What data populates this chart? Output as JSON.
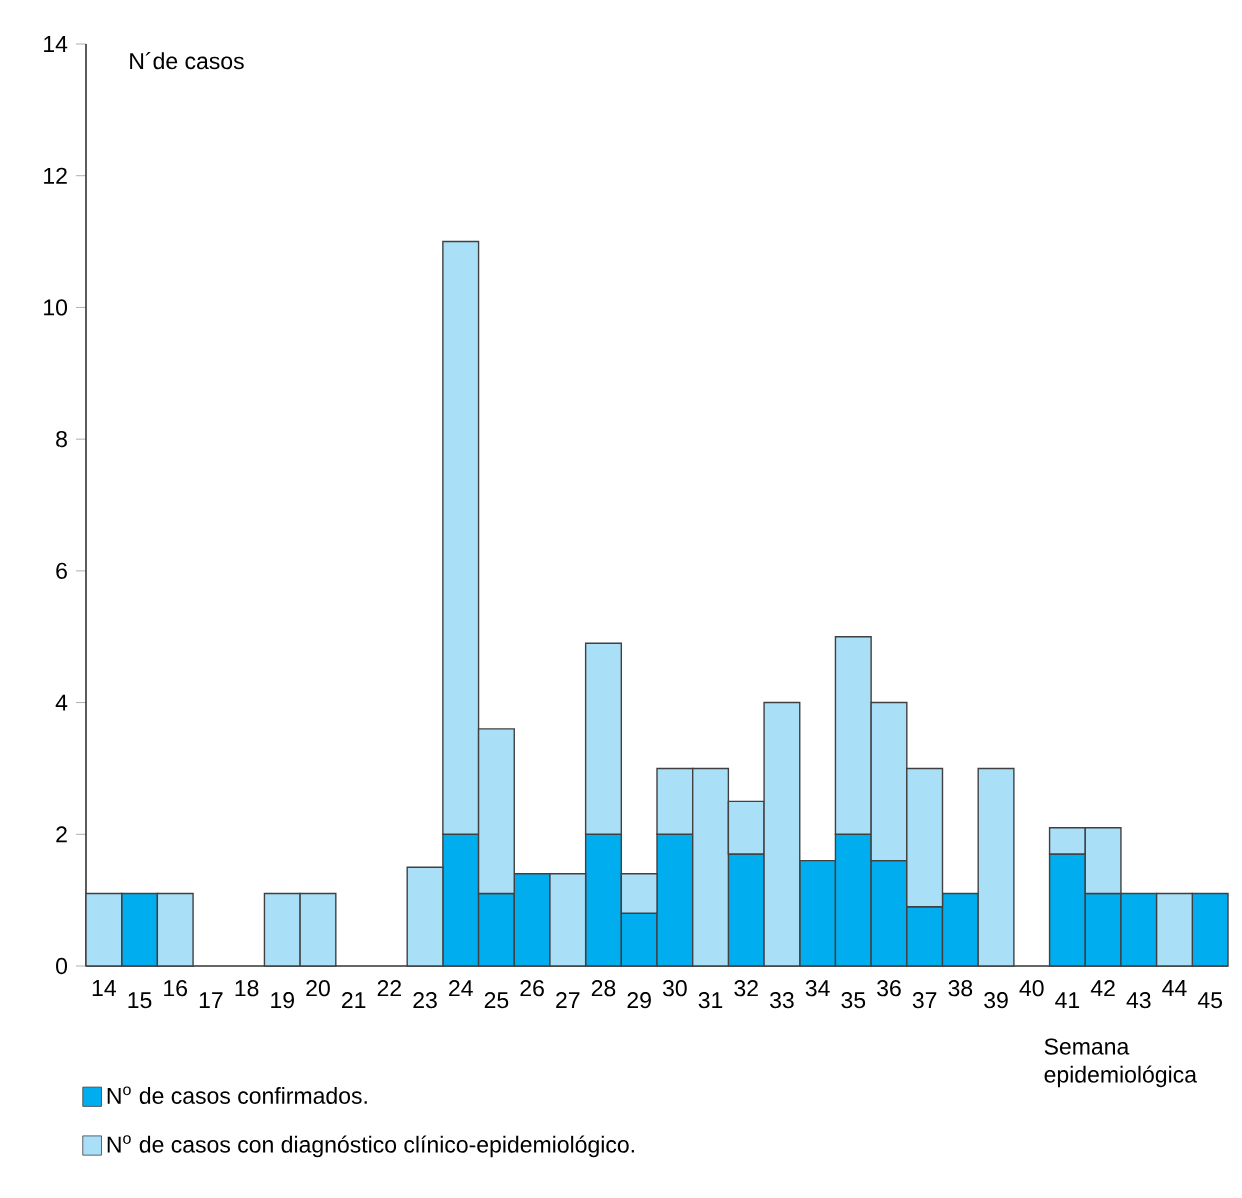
{
  "chart_data": {
    "type": "bar",
    "stacked": true,
    "ylabel": "N´de casos",
    "xlabel": "Semana epidemiológica",
    "categories": [
      "14",
      "15",
      "16",
      "17",
      "18",
      "19",
      "20",
      "21",
      "22",
      "23",
      "24",
      "25",
      "26",
      "27",
      "28",
      "29",
      "30",
      "31",
      "32",
      "33",
      "34",
      "35",
      "36",
      "37",
      "38",
      "39",
      "40",
      "41",
      "42",
      "43",
      "44",
      "45"
    ],
    "series": [
      {
        "name": "N$^{o}$ de casos confirmados.",
        "color": "#00aeef",
        "values": [
          null,
          1.1,
          null,
          null,
          null,
          null,
          null,
          null,
          null,
          null,
          2,
          1.1,
          1.4,
          null,
          2,
          0.8,
          2,
          null,
          1.7,
          null,
          1.6,
          2,
          1.6,
          0.9,
          1.1,
          null,
          null,
          1.7,
          1.1,
          1.1,
          null,
          1.1
        ]
      },
      {
        "name": "N$^{o}$ de casos con diagnóstico clínico-epidemiológico.",
        "color": "#aadff8",
        "values": [
          1.1,
          null,
          1.1,
          null,
          null,
          1.1,
          1.1,
          null,
          null,
          1.5,
          9,
          2.5,
          null,
          1.4,
          2.9,
          0.6,
          1,
          3,
          0.8,
          4,
          null,
          3,
          2.4,
          2.1,
          null,
          3,
          null,
          0.4,
          1,
          null,
          1.1,
          null
        ]
      }
    ],
    "ylim": [
      0,
      14
    ],
    "yticks": [
      0,
      2,
      4,
      6,
      8,
      10,
      12,
      14
    ],
    "grid": false,
    "legend": "bottom left"
  }
}
